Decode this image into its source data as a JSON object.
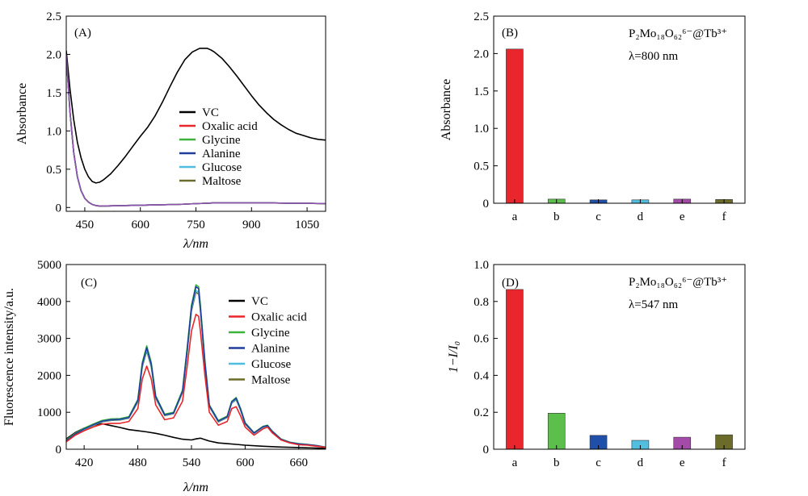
{
  "colors": {
    "VC": "#000000",
    "Oxalic acid": "#e8262b",
    "Glycine": "#3cb43c",
    "Alanine": "#1f3d9c",
    "Glucose": "#4fbde0",
    "Maltose": "#6b6b2a",
    "bar_a": "#e8262b",
    "bar_b": "#5cbf4c",
    "bar_c": "#1f4fa8",
    "bar_d": "#52bfe0",
    "bar_e": "#a44aa8",
    "bar_f": "#6b6b2a",
    "purple_overlap": "#8e52b0"
  },
  "chart_data": [
    {
      "panel": "(A)",
      "type": "line",
      "xlabel": "λ/nm",
      "ylabel": "Absorbance",
      "xlim": [
        400,
        1100
      ],
      "ylim": [
        -0.05,
        2.5
      ],
      "xticks": [
        "450",
        "600",
        "750",
        "900",
        "1050"
      ],
      "yticks": [
        "0",
        "0.5",
        "1.0",
        "1.5",
        "2.0",
        "2.5"
      ],
      "legend": [
        "VC",
        "Oxalic acid",
        "Glycine",
        "Alanine",
        "Glucose",
        "Maltose"
      ],
      "series": [
        {
          "name": "VC",
          "x": [
            400,
            410,
            420,
            430,
            440,
            450,
            460,
            470,
            480,
            490,
            500,
            520,
            540,
            560,
            580,
            600,
            620,
            640,
            660,
            680,
            700,
            720,
            740,
            760,
            780,
            790,
            800,
            820,
            840,
            860,
            880,
            900,
            920,
            940,
            960,
            980,
            1000,
            1020,
            1040,
            1060,
            1080,
            1100
          ],
          "y": [
            2.05,
            1.55,
            1.15,
            0.85,
            0.65,
            0.5,
            0.4,
            0.34,
            0.32,
            0.33,
            0.36,
            0.44,
            0.55,
            0.67,
            0.8,
            0.93,
            1.05,
            1.2,
            1.38,
            1.58,
            1.77,
            1.93,
            2.03,
            2.08,
            2.08,
            2.06,
            2.03,
            1.95,
            1.84,
            1.72,
            1.59,
            1.46,
            1.34,
            1.24,
            1.15,
            1.08,
            1.02,
            0.97,
            0.94,
            0.91,
            0.89,
            0.88
          ]
        },
        {
          "name": "Oxalic acid",
          "x": [
            400,
            410,
            420,
            430,
            440,
            450,
            460,
            470,
            480,
            490,
            500,
            550,
            600,
            650,
            700,
            750,
            800,
            850,
            900,
            950,
            1000,
            1050,
            1100
          ],
          "y": [
            2.0,
            1.25,
            0.72,
            0.4,
            0.22,
            0.12,
            0.07,
            0.04,
            0.025,
            0.02,
            0.02,
            0.025,
            0.03,
            0.035,
            0.04,
            0.05,
            0.06,
            0.06,
            0.06,
            0.06,
            0.055,
            0.055,
            0.05
          ]
        },
        {
          "name": "Glycine",
          "x": [
            400,
            410,
            420,
            430,
            440,
            450,
            460,
            470,
            480,
            490,
            500,
            550,
            600,
            650,
            700,
            750,
            800,
            850,
            900,
            950,
            1000,
            1050,
            1100
          ],
          "y": [
            2.0,
            1.25,
            0.72,
            0.4,
            0.22,
            0.12,
            0.07,
            0.04,
            0.025,
            0.02,
            0.02,
            0.025,
            0.03,
            0.035,
            0.04,
            0.05,
            0.06,
            0.06,
            0.06,
            0.06,
            0.055,
            0.055,
            0.05
          ]
        },
        {
          "name": "Alanine",
          "x": [
            400,
            410,
            420,
            430,
            440,
            450,
            460,
            470,
            480,
            490,
            500,
            550,
            600,
            650,
            700,
            750,
            800,
            850,
            900,
            950,
            1000,
            1050,
            1100
          ],
          "y": [
            2.0,
            1.25,
            0.72,
            0.4,
            0.22,
            0.12,
            0.07,
            0.04,
            0.025,
            0.02,
            0.02,
            0.025,
            0.03,
            0.035,
            0.04,
            0.05,
            0.06,
            0.06,
            0.06,
            0.06,
            0.055,
            0.055,
            0.05
          ]
        },
        {
          "name": "Glucose",
          "x": [
            400,
            410,
            420,
            430,
            440,
            450,
            460,
            470,
            480,
            490,
            500,
            550,
            600,
            650,
            700,
            750,
            800,
            850,
            900,
            950,
            1000,
            1050,
            1100
          ],
          "y": [
            2.0,
            1.25,
            0.72,
            0.4,
            0.22,
            0.12,
            0.07,
            0.04,
            0.025,
            0.02,
            0.02,
            0.025,
            0.03,
            0.035,
            0.04,
            0.05,
            0.06,
            0.06,
            0.06,
            0.06,
            0.055,
            0.055,
            0.05
          ]
        },
        {
          "name": "Maltose",
          "x": [
            400,
            410,
            420,
            430,
            440,
            450,
            460,
            470,
            480,
            490,
            500,
            550,
            600,
            650,
            700,
            750,
            800,
            850,
            900,
            950,
            1000,
            1050,
            1100
          ],
          "y": [
            2.0,
            1.25,
            0.72,
            0.4,
            0.22,
            0.12,
            0.07,
            0.04,
            0.025,
            0.02,
            0.02,
            0.025,
            0.03,
            0.035,
            0.04,
            0.05,
            0.06,
            0.06,
            0.06,
            0.06,
            0.055,
            0.055,
            0.05
          ]
        }
      ]
    },
    {
      "panel": "(B)",
      "type": "bar",
      "title": "P₂Mo₁₈O₆₂⁶⁻@Tb³⁺",
      "subtitle": "λ=800 nm",
      "ylabel": "Absorbance",
      "ylim": [
        0,
        2.5
      ],
      "yticks": [
        "0",
        "0.5",
        "1.0",
        "1.5",
        "2.0",
        "2.5"
      ],
      "categories": [
        "a",
        "b",
        "c",
        "d",
        "e",
        "f"
      ],
      "values": [
        2.06,
        0.055,
        0.045,
        0.045,
        0.055,
        0.05
      ]
    },
    {
      "panel": "(C)",
      "type": "line",
      "xlabel": "λ/nm",
      "ylabel": "Fluorescence intensity/a.u.",
      "xlim": [
        400,
        690
      ],
      "ylim": [
        0,
        5000
      ],
      "xticks": [
        "420",
        "480",
        "540",
        "600",
        "660"
      ],
      "yticks": [
        "0",
        "1000",
        "2000",
        "3000",
        "4000",
        "5000"
      ],
      "legend": [
        "VC",
        "Oxalic acid",
        "Glycine",
        "Alanine",
        "Glucose",
        "Maltose"
      ],
      "series": [
        {
          "name": "VC",
          "x": [
            400,
            410,
            420,
            430,
            440,
            450,
            460,
            470,
            480,
            490,
            500,
            510,
            520,
            530,
            540,
            545,
            550,
            560,
            570,
            580,
            590,
            600,
            620,
            640,
            660,
            680,
            690
          ],
          "y": [
            280,
            450,
            570,
            650,
            690,
            640,
            590,
            530,
            500,
            470,
            430,
            380,
            320,
            270,
            250,
            280,
            300,
            220,
            170,
            150,
            130,
            110,
            80,
            60,
            45,
            30,
            25
          ]
        },
        {
          "name": "Oxalic acid",
          "x": [
            400,
            410,
            420,
            430,
            440,
            450,
            460,
            470,
            480,
            485,
            490,
            495,
            500,
            510,
            520,
            530,
            535,
            540,
            545,
            548,
            550,
            555,
            560,
            570,
            580,
            585,
            590,
            595,
            600,
            610,
            620,
            625,
            630,
            640,
            650,
            660,
            670,
            680,
            690
          ],
          "y": [
            200,
            380,
            500,
            600,
            680,
            700,
            700,
            750,
            1100,
            1900,
            2250,
            1900,
            1200,
            800,
            850,
            1300,
            2200,
            3200,
            3650,
            3600,
            3200,
            2000,
            1000,
            650,
            750,
            1100,
            1150,
            900,
            600,
            380,
            550,
            600,
            450,
            250,
            170,
            120,
            110,
            80,
            50
          ]
        },
        {
          "name": "Glycine",
          "x": [
            400,
            410,
            420,
            430,
            440,
            450,
            460,
            470,
            480,
            485,
            490,
            495,
            500,
            510,
            520,
            530,
            535,
            540,
            545,
            548,
            550,
            555,
            560,
            570,
            580,
            585,
            590,
            595,
            600,
            610,
            620,
            625,
            630,
            640,
            650,
            660,
            670,
            680,
            690
          ],
          "y": [
            250,
            430,
            570,
            680,
            780,
            820,
            830,
            880,
            1350,
            2350,
            2800,
            2350,
            1450,
            950,
            1000,
            1600,
            2700,
            3900,
            4450,
            4400,
            3900,
            2400,
            1200,
            780,
            900,
            1300,
            1400,
            1100,
            720,
            450,
            620,
            650,
            500,
            280,
            190,
            150,
            130,
            100,
            60
          ]
        },
        {
          "name": "Alanine",
          "x": [
            400,
            410,
            420,
            430,
            440,
            450,
            460,
            470,
            480,
            485,
            490,
            495,
            500,
            510,
            520,
            530,
            535,
            540,
            545,
            548,
            550,
            555,
            560,
            570,
            580,
            585,
            590,
            595,
            600,
            610,
            620,
            625,
            630,
            640,
            650,
            660,
            670,
            680,
            690
          ],
          "y": [
            230,
            410,
            550,
            660,
            760,
            800,
            810,
            860,
            1320,
            2300,
            2750,
            2300,
            1420,
            930,
            980,
            1570,
            2650,
            3850,
            4400,
            4350,
            3850,
            2350,
            1180,
            760,
            880,
            1280,
            1380,
            1080,
            700,
            440,
            610,
            640,
            490,
            270,
            185,
            145,
            125,
            95,
            55
          ]
        },
        {
          "name": "Glucose",
          "x": [
            400,
            410,
            420,
            430,
            440,
            450,
            460,
            470,
            480,
            485,
            490,
            495,
            500,
            510,
            520,
            530,
            535,
            540,
            545,
            548,
            550,
            555,
            560,
            570,
            580,
            585,
            590,
            595,
            600,
            610,
            620,
            625,
            630,
            640,
            650,
            660,
            670,
            680,
            690
          ],
          "y": [
            220,
            400,
            540,
            650,
            750,
            790,
            800,
            850,
            1300,
            2260,
            2700,
            2260,
            1400,
            920,
            970,
            1550,
            2600,
            3800,
            4300,
            4250,
            3800,
            2320,
            1160,
            750,
            870,
            1260,
            1360,
            1060,
            690,
            430,
            600,
            630,
            480,
            265,
            180,
            140,
            120,
            90,
            55
          ]
        },
        {
          "name": "Maltose",
          "x": [
            400,
            410,
            420,
            430,
            440,
            450,
            460,
            470,
            480,
            485,
            490,
            495,
            500,
            510,
            520,
            530,
            535,
            540,
            545,
            548,
            550,
            555,
            560,
            570,
            580,
            585,
            590,
            595,
            600,
            610,
            620,
            625,
            630,
            640,
            650,
            660,
            670,
            680,
            690
          ],
          "y": [
            210,
            390,
            530,
            640,
            740,
            780,
            790,
            840,
            1280,
            2230,
            2660,
            2230,
            1380,
            910,
            960,
            1530,
            2560,
            3750,
            4250,
            4200,
            3750,
            2290,
            1150,
            740,
            860,
            1250,
            1340,
            1050,
            680,
            425,
            595,
            625,
            475,
            260,
            178,
            138,
            118,
            88,
            52
          ]
        }
      ]
    },
    {
      "panel": "(D)",
      "type": "bar",
      "title": "P₂Mo₁₈O₆₂⁶⁻@Tb³⁺",
      "subtitle": "λ=547 nm",
      "ylabel": "1−I/I₀",
      "ylim": [
        0,
        1.0
      ],
      "yticks": [
        "0",
        "0.2",
        "0.4",
        "0.6",
        "0.8",
        "1.0"
      ],
      "categories": [
        "a",
        "b",
        "c",
        "d",
        "e",
        "f"
      ],
      "values": [
        0.865,
        0.195,
        0.075,
        0.048,
        0.065,
        0.078
      ]
    }
  ]
}
